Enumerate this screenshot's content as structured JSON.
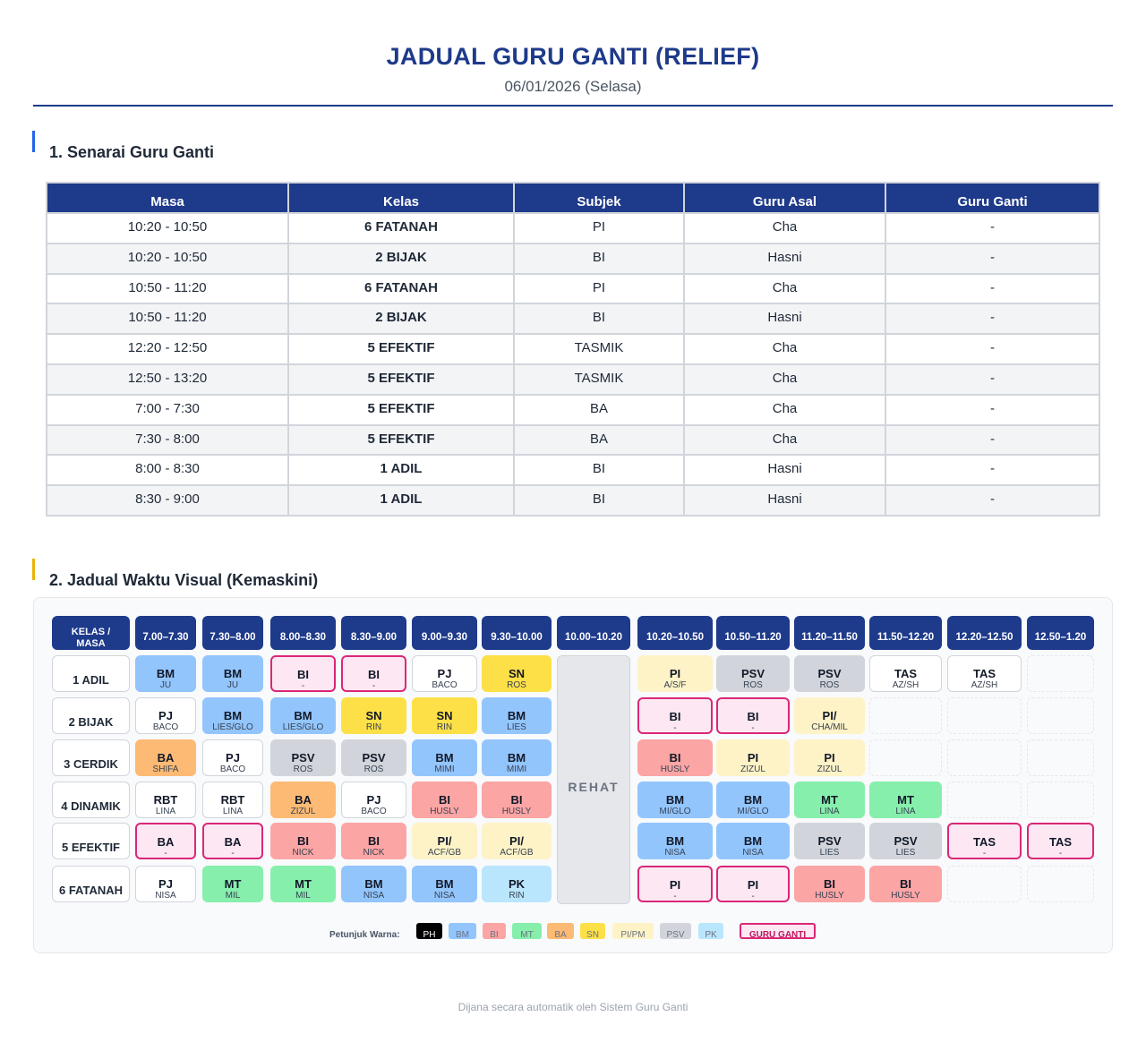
{
  "title": "JADUAL GURU GANTI (RELIEF)",
  "date": "06/01/2026 (Selasa)",
  "section1": {
    "heading": "1. Senarai Guru Ganti",
    "columns": [
      "Masa",
      "Kelas",
      "Subjek",
      "Guru Asal",
      "Guru Ganti"
    ],
    "rows": [
      {
        "masa": "10:20 - 10:50",
        "kelas": "6 FATANAH",
        "subjek": "PI",
        "asal": "Cha",
        "ganti": "-"
      },
      {
        "masa": "10:20 - 10:50",
        "kelas": "2 BIJAK",
        "subjek": "BI",
        "asal": "Hasni",
        "ganti": "-"
      },
      {
        "masa": "10:50 - 11:20",
        "kelas": "6 FATANAH",
        "subjek": "PI",
        "asal": "Cha",
        "ganti": "-"
      },
      {
        "masa": "10:50 - 11:20",
        "kelas": "2 BIJAK",
        "subjek": "BI",
        "asal": "Hasni",
        "ganti": "-"
      },
      {
        "masa": "12:20 - 12:50",
        "kelas": "5 EFEKTIF",
        "subjek": "TASMIK",
        "asal": "Cha",
        "ganti": "-"
      },
      {
        "masa": "12:50 - 13:20",
        "kelas": "5 EFEKTIF",
        "subjek": "TASMIK",
        "asal": "Cha",
        "ganti": "-"
      },
      {
        "masa": "7:00 - 7:30",
        "kelas": "5 EFEKTIF",
        "subjek": "BA",
        "asal": "Cha",
        "ganti": "-"
      },
      {
        "masa": "7:30 - 8:00",
        "kelas": "5 EFEKTIF",
        "subjek": "BA",
        "asal": "Cha",
        "ganti": "-"
      },
      {
        "masa": "8:00 - 8:30",
        "kelas": "1 ADIL",
        "subjek": "BI",
        "asal": "Hasni",
        "ganti": "-"
      },
      {
        "masa": "8:30 - 9:00",
        "kelas": "1 ADIL",
        "subjek": "BI",
        "asal": "Hasni",
        "ganti": "-"
      }
    ]
  },
  "section2": {
    "heading": "2. Jadual Waktu Visual (Kemaskini)",
    "corner": [
      "KELAS /",
      "MASA"
    ],
    "times": [
      "7.00–7.30",
      "7.30–8.00",
      "8.00–8.30",
      "8.30–9.00",
      "9.00–9.30",
      "9.30–10.00",
      "10.00–10.20",
      "10.20–10.50",
      "10.50–11.20",
      "11.20–11.50",
      "11.50–12.20",
      "12.20–12.50",
      "12.50–1.20"
    ],
    "rehat": "REHAT",
    "classes": [
      "1 ADIL",
      "2 BIJAK",
      "3 CERDIK",
      "4 DINAMIK",
      "5 EFEKTIF",
      "6 FATANAH"
    ],
    "grid": [
      [
        [
          "BM",
          "JU",
          "BM"
        ],
        [
          "BM",
          "JU",
          "BM"
        ],
        [
          "BI",
          "-",
          "RL"
        ],
        [
          "BI",
          "-",
          "RL"
        ],
        [
          "PJ",
          "BACO",
          "W"
        ],
        [
          "SN",
          "ROS",
          "SN"
        ],
        [
          "PI",
          "A/S/F",
          "PI"
        ],
        [
          "PSV",
          "ROS",
          "PSV"
        ],
        [
          "PSV",
          "ROS",
          "PSV"
        ],
        [
          "TAS",
          "AZ/SH",
          "W"
        ],
        [
          "TAS",
          "AZ/SH",
          "W"
        ],
        null
      ],
      [
        [
          "PJ",
          "BACO",
          "W"
        ],
        [
          "BM",
          "LIES/GLO",
          "BM"
        ],
        [
          "BM",
          "LIES/GLO",
          "BM"
        ],
        [
          "SN",
          "RIN",
          "SN"
        ],
        [
          "SN",
          "RIN",
          "SN"
        ],
        [
          "BM",
          "LIES",
          "BM"
        ],
        [
          "BI",
          "-",
          "RL"
        ],
        [
          "BI",
          "-",
          "RL"
        ],
        [
          "PI/",
          "CHA/MIL",
          "PI"
        ],
        null,
        null,
        null
      ],
      [
        [
          "BA",
          "SHIFA",
          "BA"
        ],
        [
          "PJ",
          "BACO",
          "W"
        ],
        [
          "PSV",
          "ROS",
          "PSV"
        ],
        [
          "PSV",
          "ROS",
          "PSV"
        ],
        [
          "BM",
          "MIMI",
          "BM"
        ],
        [
          "BM",
          "MIMI",
          "BM"
        ],
        [
          "BI",
          "HUSLY",
          "BI"
        ],
        [
          "PI",
          "ZIZUL",
          "PI"
        ],
        [
          "PI",
          "ZIZUL",
          "PI"
        ],
        null,
        null,
        null
      ],
      [
        [
          "RBT",
          "LINA",
          "W"
        ],
        [
          "RBT",
          "LINA",
          "W"
        ],
        [
          "BA",
          "ZIZUL",
          "BA"
        ],
        [
          "PJ",
          "BACO",
          "W"
        ],
        [
          "BI",
          "HUSLY",
          "BI"
        ],
        [
          "BI",
          "HUSLY",
          "BI"
        ],
        [
          "BM",
          "MI/GLO",
          "BM"
        ],
        [
          "BM",
          "MI/GLO",
          "BM"
        ],
        [
          "MT",
          "LINA",
          "MT"
        ],
        [
          "MT",
          "LINA",
          "MT"
        ],
        null,
        null
      ],
      [
        [
          "BA",
          "-",
          "RL"
        ],
        [
          "BA",
          "-",
          "RL"
        ],
        [
          "BI",
          "NICK",
          "BI"
        ],
        [
          "BI",
          "NICK",
          "BI"
        ],
        [
          "PI/",
          "ACF/GB",
          "PI"
        ],
        [
          "PI/",
          "ACF/GB",
          "PI"
        ],
        [
          "BM",
          "NISA",
          "BM"
        ],
        [
          "BM",
          "NISA",
          "BM"
        ],
        [
          "PSV",
          "LIES",
          "PSV"
        ],
        [
          "PSV",
          "LIES",
          "PSV"
        ],
        [
          "TAS",
          "-",
          "RL"
        ],
        [
          "TAS",
          "-",
          "RL"
        ]
      ],
      [
        [
          "PJ",
          "NISA",
          "W"
        ],
        [
          "MT",
          "MIL",
          "MT"
        ],
        [
          "MT",
          "MIL",
          "MT"
        ],
        [
          "BM",
          "NISA",
          "BM"
        ],
        [
          "BM",
          "NISA",
          "BM"
        ],
        [
          "PK",
          "RIN",
          "PK"
        ],
        [
          "PI",
          "-",
          "RL"
        ],
        [
          "PI",
          "-",
          "RL"
        ],
        [
          "BI",
          "HUSLY",
          "BI"
        ],
        [
          "BI",
          "HUSLY",
          "BI"
        ],
        null,
        null
      ]
    ],
    "legend_label": "Petunjuk Warna:",
    "legend": [
      {
        "label": "PH",
        "color": "#000000"
      },
      {
        "label": "BM",
        "color": "#93c5fd"
      },
      {
        "label": "BI",
        "color": "#fca5a5"
      },
      {
        "label": "MT",
        "color": "#86efac"
      },
      {
        "label": "BA",
        "color": "#fdba74"
      },
      {
        "label": "SN",
        "color": "#fde047"
      },
      {
        "label": "PI/PM",
        "color": "#fef3c7"
      },
      {
        "label": "PSV",
        "color": "#d1d5db"
      },
      {
        "label": "PK",
        "color": "#bae6fd"
      },
      {
        "label": "GURU GANTI",
        "color": "#fce7f3"
      }
    ]
  },
  "footer": "Dijana secara automatik oleh Sistem Guru Ganti",
  "colors": {
    "primary": "#1e3a8a",
    "relief_border": "#db2777",
    "guru_asal": "#dc2626"
  }
}
